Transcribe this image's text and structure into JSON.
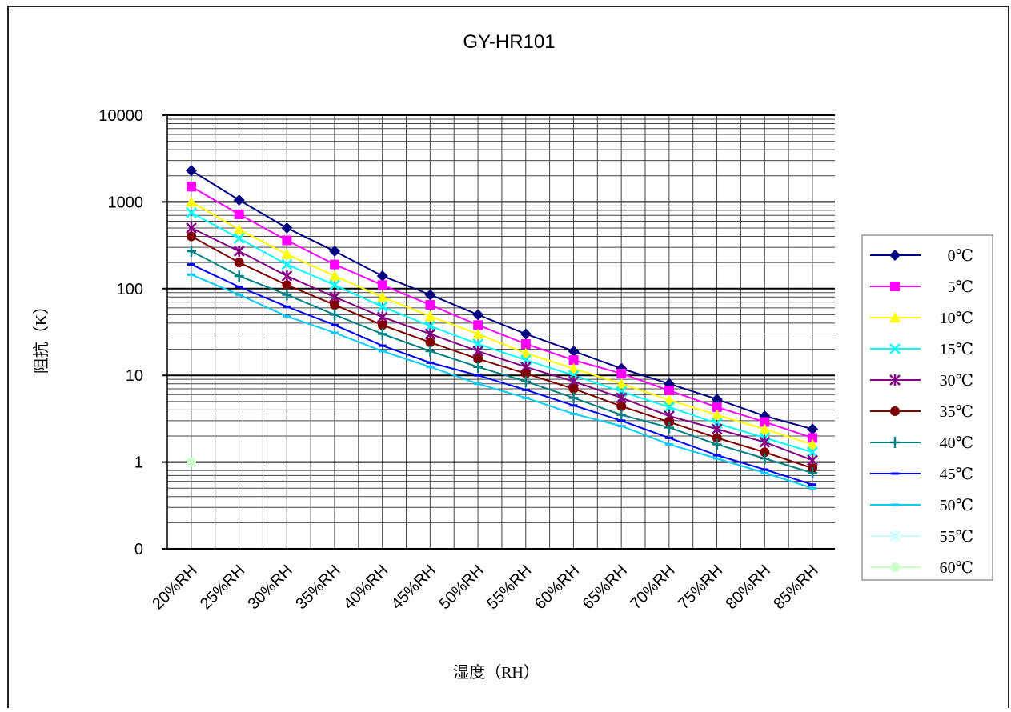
{
  "chart_data": {
    "type": "line",
    "title": "GY-HR101",
    "x_label": "湿度（RH）",
    "y_label": "阻抗（K）",
    "yscale": "log",
    "grid": true,
    "categories": [
      "20%RH",
      "25%RH",
      "30%RH",
      "35%RH",
      "40%RH",
      "45%RH",
      "50%RH",
      "55%RH",
      "60%RH",
      "65%RH",
      "70%RH",
      "75%RH",
      "80%RH",
      "85%RH"
    ],
    "ylim": [
      0.1,
      10000
    ],
    "yticks": [
      {
        "value": 0.1,
        "label": "0"
      },
      1,
      10,
      100,
      1000,
      10000
    ],
    "series": [
      {
        "name": "0℃",
        "color": "#000080",
        "marker": "diamond",
        "values": [
          2300,
          1050,
          500,
          270,
          140,
          85,
          50,
          30,
          19,
          12,
          8,
          5.3,
          3.4,
          2.4
        ]
      },
      {
        "name": "5℃",
        "color": "#ff00ff",
        "marker": "square",
        "values": [
          1500,
          720,
          360,
          190,
          110,
          65,
          38,
          23,
          15,
          10.5,
          6.7,
          4.3,
          2.9,
          1.9
        ]
      },
      {
        "name": "10℃",
        "color": "#ffff00",
        "marker": "triangle",
        "values": [
          1000,
          480,
          250,
          140,
          80,
          48,
          30,
          18,
          12,
          8,
          5.2,
          3.5,
          2.4,
          1.6
        ]
      },
      {
        "name": "15℃",
        "color": "#00ffff",
        "marker": "x",
        "values": [
          750,
          380,
          190,
          110,
          62,
          37,
          23,
          15,
          10,
          6.5,
          4.3,
          2.8,
          1.9,
          1.3
        ]
      },
      {
        "name": "30℃",
        "color": "#800080",
        "marker": "star",
        "values": [
          500,
          270,
          140,
          80,
          47,
          30,
          19,
          12.5,
          8.5,
          5.5,
          3.4,
          2.4,
          1.7,
          1.05
        ]
      },
      {
        "name": "35℃",
        "color": "#800000",
        "marker": "circle",
        "values": [
          400,
          200,
          110,
          65,
          38,
          24,
          15.5,
          10.5,
          7,
          4.4,
          2.9,
          1.9,
          1.3,
          0.85
        ]
      },
      {
        "name": "40℃",
        "color": "#008080",
        "marker": "plus",
        "values": [
          270,
          140,
          85,
          50,
          30,
          19,
          12.5,
          8.5,
          5.5,
          3.5,
          2.5,
          1.6,
          1.1,
          0.75
        ]
      },
      {
        "name": "45℃",
        "color": "#0000ff",
        "marker": "dash",
        "values": [
          190,
          105,
          62,
          38,
          22,
          14,
          10,
          6.8,
          4.5,
          3,
          1.9,
          1.2,
          0.82,
          0.55
        ]
      },
      {
        "name": "50℃",
        "color": "#00ccff",
        "marker": "dash",
        "values": [
          145,
          85,
          48,
          31,
          19,
          12.5,
          8,
          5.5,
          3.6,
          2.6,
          1.6,
          1.1,
          0.75,
          0.5
        ]
      },
      {
        "name": "55℃",
        "color": "#ccffff",
        "marker": "star",
        "values": [
          null,
          null,
          null,
          null,
          null,
          null,
          null,
          null,
          null,
          null,
          null,
          null,
          null,
          null
        ]
      },
      {
        "name": "60℃",
        "color": "#ccffcc",
        "marker": "circle",
        "values": [
          1,
          null,
          null,
          null,
          null,
          null,
          null,
          null,
          null,
          null,
          null,
          null,
          null,
          null
        ]
      }
    ]
  }
}
